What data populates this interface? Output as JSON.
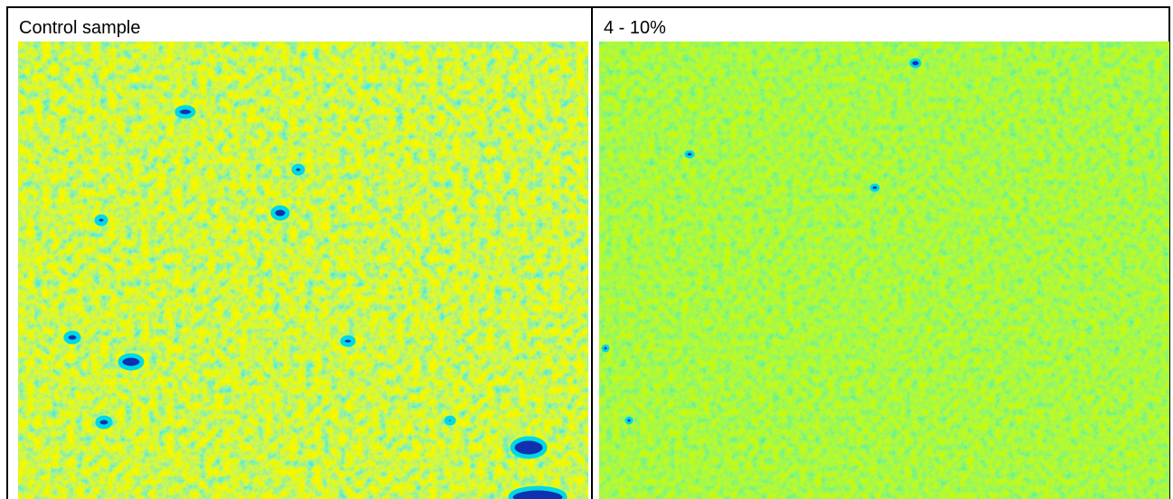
{
  "table": {
    "headers": [
      "Control sample",
      "4 - 10%"
    ]
  }
}
